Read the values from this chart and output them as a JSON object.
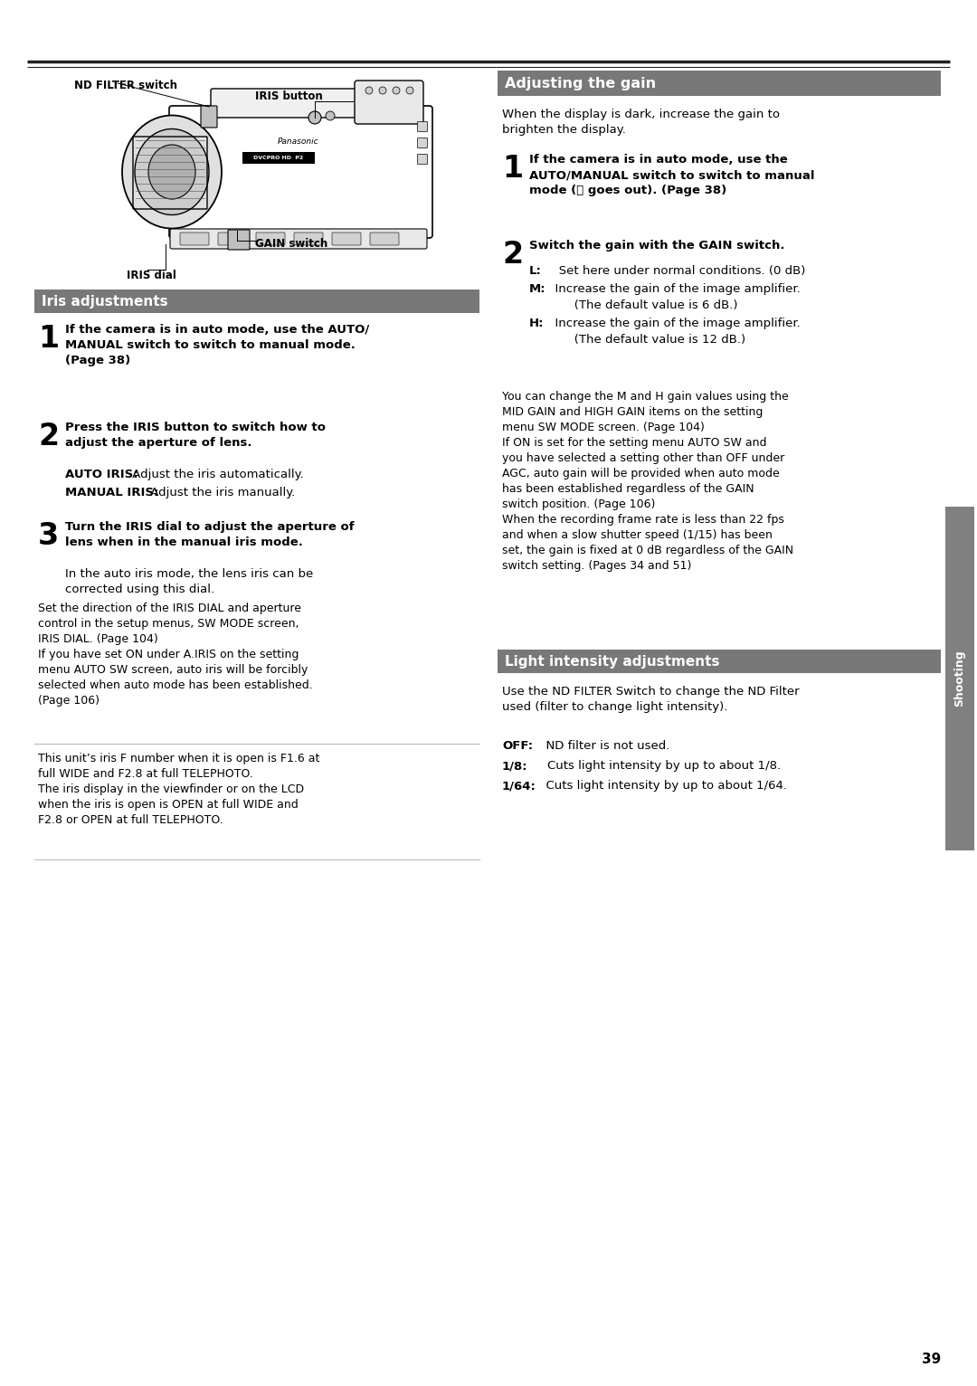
{
  "page_number": "39",
  "bg": "#ffffff",
  "section_bg": "#787878",
  "section_text": "#ffffff",
  "body_text": "#000000",
  "sidebar_bg": "#808080",
  "sidebar_text": "#ffffff",
  "sidebar_label": "Shooting",
  "rule_color": "#222222",
  "thin_rule": "#bbbbbb",
  "section1_title": "Iris adjustments",
  "section2_title": "Adjusting the gain",
  "section3_title": "Light intensity adjustments",
  "cam_nd_filter": "ND FILTER switch",
  "cam_iris_button": "IRIS button",
  "cam_gain_switch": "GAIN switch",
  "cam_iris_dial": "IRIS dial",
  "iris_s1_bold": "If the camera is in auto mode, use the AUTO/\nMANUAL switch to switch to manual mode.\n(Page 38)",
  "iris_s2_bold": "Press the IRIS button to switch how to\nadjust the aperture of lens.",
  "iris_s2_auto": "AUTO IRIS:",
  "iris_s2_auto_t": " Adjust the iris automatically.",
  "iris_s2_manual": "MANUAL IRIS:",
  "iris_s2_manual_t": " Adjust the iris manually.",
  "iris_s3_bold": "Turn the IRIS dial to adjust the aperture of\nlens when in the manual iris mode.",
  "iris_s3_normal": "In the auto iris mode, the lens iris can be\ncorrected using this dial.",
  "iris_note1": "Set the direction of the IRIS DIAL and aperture\ncontrol in the setup menus, SW MODE screen,\nIRIS DIAL. (Page 104)\nIf you have set ON under A.IRIS on the setting\nmenu AUTO SW screen, auto iris will be forcibly\nselected when auto mode has been established.\n(Page 106)",
  "iris_note2": "This unit’s iris F number when it is open is F1.6 at\nfull WIDE and F2.8 at full TELEPHOTO.\nThe iris display in the viewfinder or on the LCD\nwhen the iris is open is OPEN at full WIDE and\nF2.8 or OPEN at full TELEPHOTO.",
  "gain_intro": "When the display is dark, increase the gain to\nbrighten the display.",
  "gain_s1_bold": "If the camera is in auto mode, use the\nAUTO/MANUAL switch to switch to manual\nmode (Ⓐ goes out). (Page 38)",
  "gain_s2_bold": "Switch the gain with the GAIN switch.",
  "gain_L_bold": "L:",
  "gain_L_text": "   Set here under normal conditions. (0 dB)",
  "gain_M_bold": "M:",
  "gain_M_text": "  Increase the gain of the image amplifier.",
  "gain_M_text2": "       (The default value is 6 dB.)",
  "gain_H_bold": "H:",
  "gain_H_text": "  Increase the gain of the image amplifier.",
  "gain_H_text2": "       (The default value is 12 dB.)",
  "gain_note": "You can change the M and H gain values using the\nMID GAIN and HIGH GAIN items on the setting\nmenu SW MODE screen. (Page 104)\nIf ON is set for the setting menu AUTO SW and\nyou have selected a setting other than OFF under\nAGC, auto gain will be provided when auto mode\nhas been established regardless of the GAIN\nswitch position. (Page 106)\nWhen the recording frame rate is less than 22 fps\nand when a slow shutter speed (1/15) has been\nset, the gain is fixed at 0 dB regardless of the GAIN\nswitch setting. (Pages 34 and 51)",
  "light_intro": "Use the ND FILTER Switch to change the ND Filter\nused (filter to change light intensity).",
  "light_OFF_bold": "OFF:",
  "light_OFF_text": "  ND filter is not used.",
  "light_18_bold": "1/8:",
  "light_18_text": "    Cuts light intensity by up to about 1/8.",
  "light_164_bold": "1/64:",
  "light_164_text": "  Cuts light intensity by up to about 1/64."
}
